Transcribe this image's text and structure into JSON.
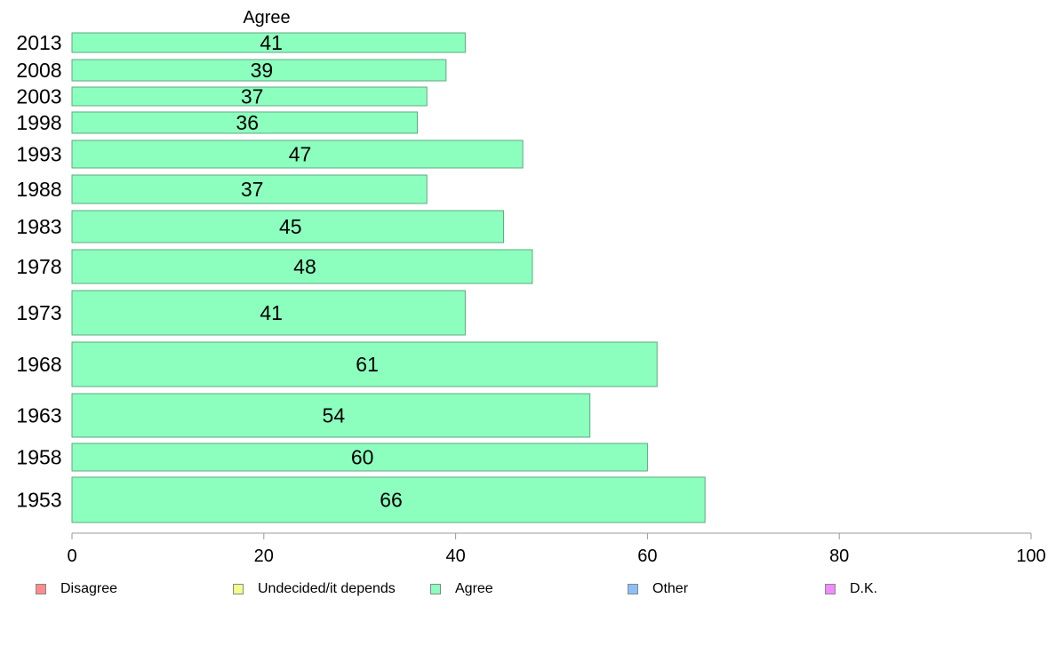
{
  "chart_data": {
    "type": "bar",
    "orientation": "horizontal",
    "title": "Agree",
    "categories": [
      "2013",
      "2008",
      "2003",
      "1998",
      "1993",
      "1988",
      "1983",
      "1978",
      "1973",
      "1968",
      "1963",
      "1958",
      "1953"
    ],
    "series": [
      {
        "name": "Agree",
        "values": [
          41,
          39,
          37,
          36,
          47,
          37,
          45,
          48,
          41,
          61,
          54,
          60,
          66
        ]
      }
    ],
    "xlim": [
      0,
      100
    ],
    "xticks": [
      0,
      20,
      40,
      60,
      80,
      100
    ],
    "grid": false,
    "legend_position": "bottom",
    "legend": [
      {
        "label": "Disagree",
        "color": "#ff8c8c"
      },
      {
        "label": "Undecided/it depends",
        "color": "#f0ff8c"
      },
      {
        "label": "Agree",
        "color": "#8cffbe"
      },
      {
        "label": "Other",
        "color": "#8cbeff"
      },
      {
        "label": "D.K.",
        "color": "#f08cff"
      }
    ],
    "bar_color": "#8cffbe"
  }
}
